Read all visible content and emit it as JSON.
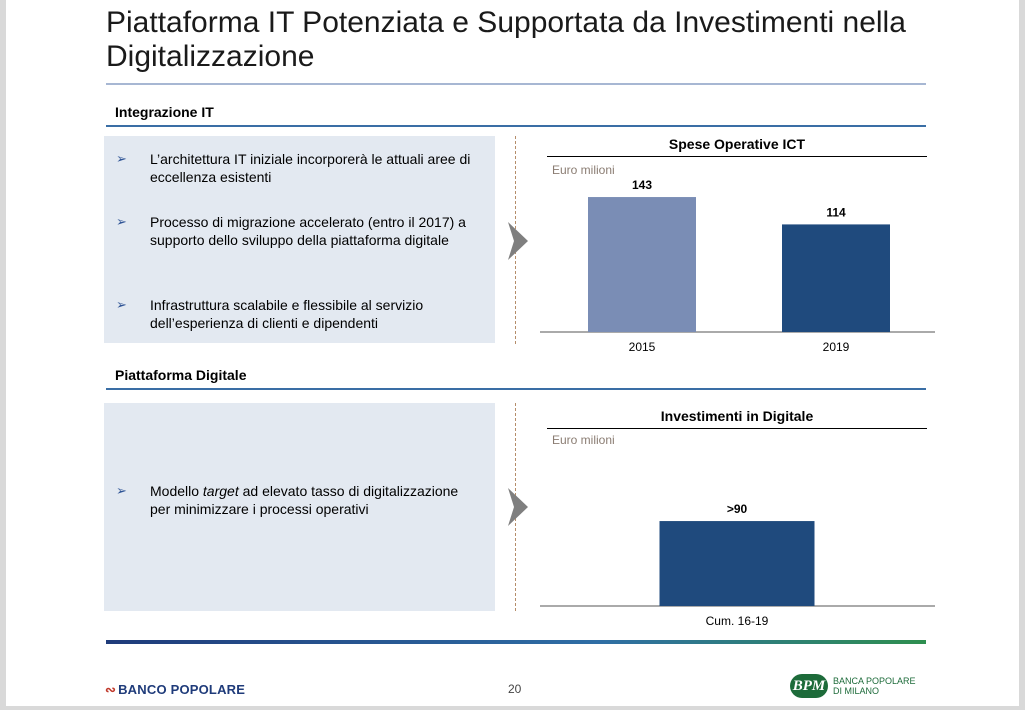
{
  "title": "Piattaforma IT Potenziata e Supportata da Investimenti nella Digitalizzazione",
  "section1": {
    "heading": "Integrazione IT",
    "bullets": [
      "L’architettura IT iniziale incorporerà le attuali aree di eccellenza esistenti",
      "Processo di migrazione accelerato (entro il 2017) a supporto dello sviluppo della piattaforma digitale",
      "Infrastruttura scalabile e flessibile al servizio dell’esperienza di clienti e dipendenti"
    ]
  },
  "section2": {
    "heading": "Piattaforma Digitale",
    "bullet": {
      "before": "Modello ",
      "italic": "target",
      "after": " ad elevato tasso di digitalizzazione per minimizzare i processi operativi"
    }
  },
  "bullet_marker": "➢",
  "chart_data": [
    {
      "type": "bar",
      "title": "Spese Operative ICT",
      "unit": "Euro milioni",
      "categories": [
        "2015",
        "2019"
      ],
      "values": [
        143,
        114
      ],
      "labels": [
        "143",
        "114"
      ],
      "colors": [
        "#7a8db5",
        "#1f4a7d"
      ],
      "ylim": [
        0,
        160
      ]
    },
    {
      "type": "bar",
      "title": "Investimenti in Digitale",
      "unit": "Euro milioni",
      "categories": [
        "Cum. 16-19"
      ],
      "values": [
        90
      ],
      "labels": [
        ">90"
      ],
      "colors": [
        "#1f4a7d"
      ],
      "ylim": [
        0,
        160
      ]
    }
  ],
  "footer": {
    "page_number": "20",
    "left_logo": "BANCO POPOLARE",
    "left_logo_mark": "∾",
    "right_logo_mark": "BPM",
    "right_logo_line1": "BANCA POPOLARE",
    "right_logo_line2": "DI MILANO"
  }
}
